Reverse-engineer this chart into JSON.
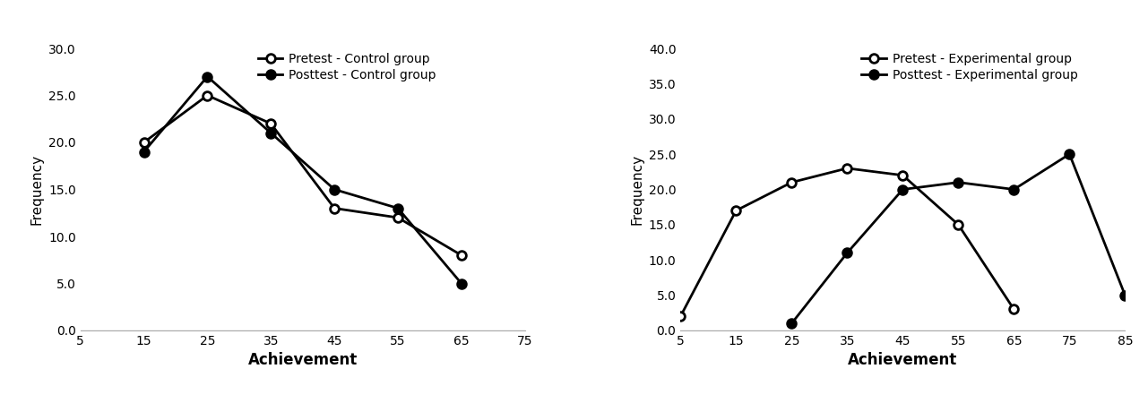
{
  "control": {
    "pretest_x": [
      15,
      25,
      35,
      45,
      55,
      65
    ],
    "pretest_y": [
      20.0,
      25.0,
      22.0,
      13.0,
      12.0,
      8.0
    ],
    "posttest_x": [
      15,
      25,
      35,
      45,
      55,
      65
    ],
    "posttest_y": [
      19.0,
      27.0,
      21.0,
      15.0,
      13.0,
      5.0
    ],
    "xlabel": "Achievement",
    "ylabel": "Frequency",
    "xlim": [
      5,
      75
    ],
    "xticks": [
      5,
      15,
      25,
      35,
      45,
      55,
      65,
      75
    ],
    "ylim": [
      0.0,
      30.0
    ],
    "yticks": [
      0.0,
      5.0,
      10.0,
      15.0,
      20.0,
      25.0,
      30.0
    ],
    "legend_pretest": "Pretest - Control group",
    "legend_posttest": "Posttest - Control group"
  },
  "experimental": {
    "pretest_x": [
      5,
      15,
      25,
      35,
      45,
      55,
      65
    ],
    "pretest_y": [
      2.0,
      17.0,
      21.0,
      23.0,
      22.0,
      15.0,
      3.0
    ],
    "posttest_x": [
      25,
      35,
      45,
      55,
      65,
      75,
      85
    ],
    "posttest_y": [
      1.0,
      11.0,
      20.0,
      21.0,
      20.0,
      25.0,
      5.0
    ],
    "xlabel": "Achievement",
    "ylabel": "Frequency",
    "xlim": [
      5,
      85
    ],
    "xticks": [
      5,
      15,
      25,
      35,
      45,
      55,
      65,
      75,
      85
    ],
    "ylim": [
      0.0,
      40.0
    ],
    "yticks": [
      0.0,
      5.0,
      10.0,
      15.0,
      20.0,
      25.0,
      30.0,
      35.0,
      40.0
    ],
    "legend_pretest": "Pretest - Experimental group",
    "legend_posttest": "Posttest - Experimental group"
  },
  "line_color": "#000000",
  "linewidth": 2.0,
  "markersize": 7
}
